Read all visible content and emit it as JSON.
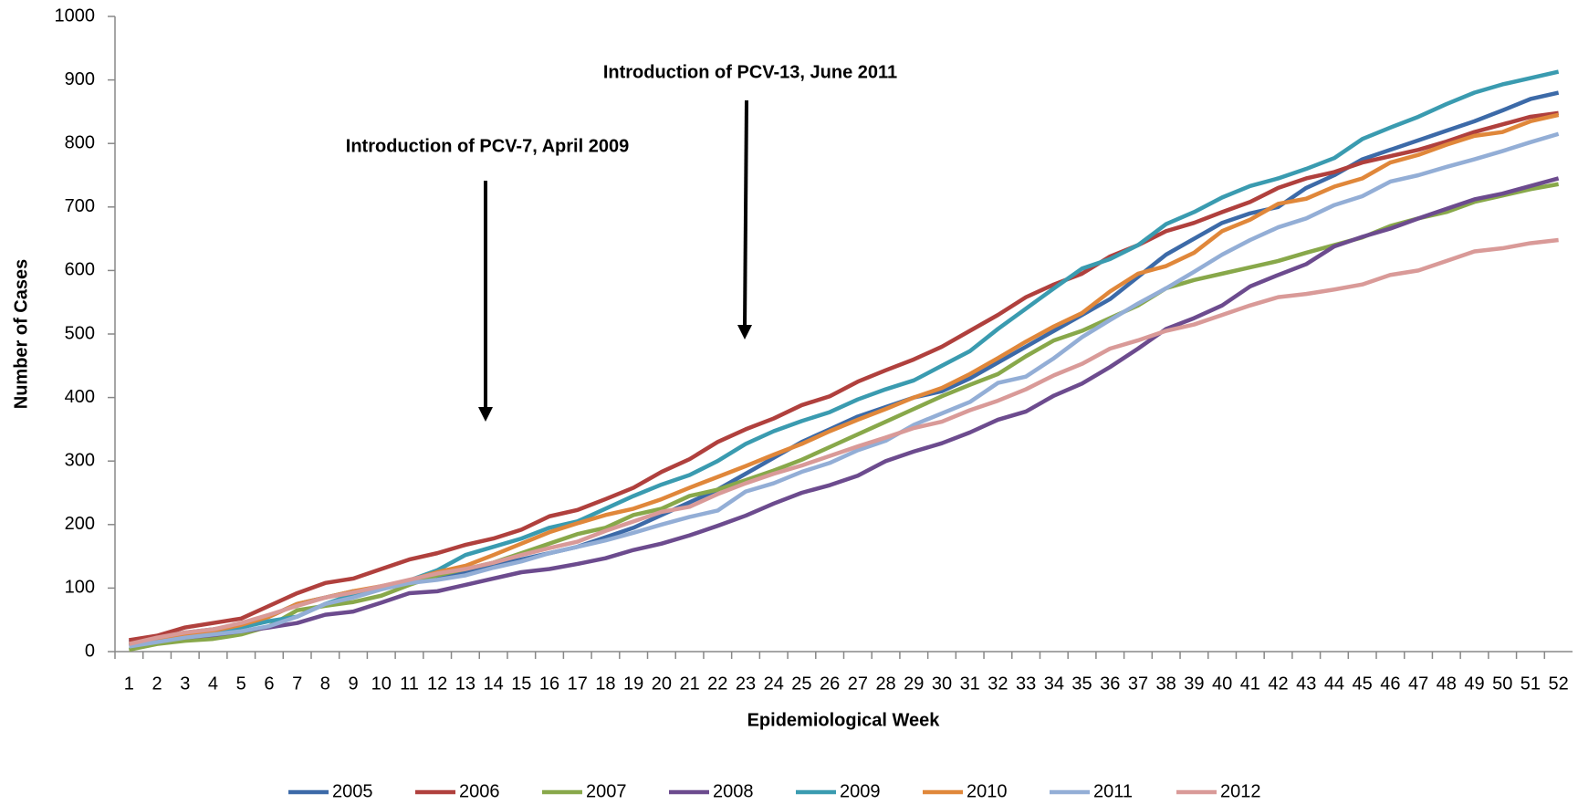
{
  "chart_data": {
    "type": "line",
    "x_label": "Epidemiological Week",
    "y_label": "Number of Cases",
    "annotations": [
      "Introduction of PCV-7, April 2009",
      "Introduction of PCV-13, June 2011"
    ],
    "categories": [
      "1",
      "2",
      "3",
      "4",
      "5",
      "6",
      "7",
      "8",
      "9",
      "10",
      "11",
      "12",
      "13",
      "14",
      "15",
      "16",
      "17",
      "18",
      "19",
      "20",
      "21",
      "22",
      "23",
      "24",
      "25",
      "26",
      "27",
      "28",
      "29",
      "30",
      "31",
      "32",
      "33",
      "34",
      "35",
      "36",
      "37",
      "38",
      "39",
      "40",
      "41",
      "42",
      "43",
      "44",
      "45",
      "46",
      "47",
      "48",
      "49",
      "50",
      "51",
      "52"
    ],
    "ylim": [
      0,
      1000
    ],
    "yticks": [
      0,
      100,
      200,
      300,
      400,
      500,
      600,
      700,
      800,
      900,
      1000
    ],
    "grid": false,
    "legend": "bottom",
    "series": [
      {
        "name": "2005",
        "color": "#3c6aa8",
        "values": [
          15,
          22,
          30,
          35,
          42,
          55,
          75,
          85,
          95,
          100,
          110,
          118,
          125,
          135,
          145,
          155,
          165,
          180,
          195,
          215,
          235,
          255,
          280,
          305,
          330,
          350,
          370,
          385,
          400,
          410,
          430,
          455,
          480,
          505,
          530,
          555,
          590,
          625,
          650,
          675,
          690,
          700,
          730,
          750,
          775,
          790,
          805,
          820,
          835,
          852,
          870,
          880
        ]
      },
      {
        "name": "2006",
        "color": "#b0403d",
        "values": [
          18,
          25,
          38,
          45,
          52,
          72,
          92,
          108,
          115,
          130,
          145,
          155,
          168,
          178,
          192,
          213,
          223,
          240,
          258,
          283,
          303,
          330,
          350,
          367,
          388,
          402,
          425,
          443,
          460,
          480,
          505,
          530,
          558,
          578,
          595,
          622,
          640,
          662,
          675,
          692,
          708,
          730,
          745,
          755,
          770,
          780,
          790,
          803,
          818,
          830,
          842,
          848
        ]
      },
      {
        "name": "2007",
        "color": "#88a84a",
        "values": [
          3,
          12,
          17,
          20,
          27,
          40,
          65,
          72,
          78,
          88,
          105,
          120,
          130,
          140,
          155,
          170,
          185,
          195,
          215,
          225,
          245,
          255,
          270,
          285,
          302,
          322,
          342,
          362,
          382,
          402,
          420,
          437,
          465,
          490,
          505,
          525,
          545,
          572,
          585,
          595,
          605,
          615,
          628,
          640,
          652,
          670,
          682,
          692,
          708,
          718,
          728,
          736
        ]
      },
      {
        "name": "2008",
        "color": "#6c4b8e",
        "values": [
          10,
          17,
          22,
          26,
          32,
          38,
          45,
          58,
          63,
          77,
          92,
          95,
          105,
          115,
          125,
          130,
          138,
          147,
          160,
          170,
          183,
          198,
          214,
          233,
          250,
          262,
          277,
          300,
          315,
          328,
          345,
          365,
          378,
          403,
          422,
          448,
          477,
          508,
          525,
          545,
          575,
          593,
          610,
          638,
          653,
          666,
          682,
          697,
          712,
          721,
          733,
          745
        ]
      },
      {
        "name": "2009",
        "color": "#3a9bb0",
        "values": [
          10,
          18,
          25,
          30,
          38,
          48,
          55,
          75,
          90,
          100,
          112,
          128,
          152,
          165,
          178,
          195,
          205,
          225,
          245,
          263,
          278,
          300,
          327,
          347,
          363,
          377,
          397,
          413,
          427,
          450,
          473,
          508,
          540,
          572,
          603,
          618,
          640,
          673,
          692,
          715,
          733,
          745,
          760,
          777,
          807,
          825,
          842,
          862,
          880,
          893,
          903,
          913
        ]
      },
      {
        "name": "2010",
        "color": "#e0873a",
        "values": [
          12,
          20,
          28,
          33,
          42,
          55,
          75,
          85,
          95,
          103,
          112,
          125,
          135,
          152,
          170,
          188,
          202,
          215,
          225,
          240,
          258,
          275,
          292,
          310,
          327,
          347,
          365,
          382,
          400,
          415,
          437,
          462,
          488,
          512,
          533,
          567,
          595,
          607,
          628,
          662,
          680,
          705,
          713,
          732,
          745,
          770,
          782,
          798,
          812,
          818,
          835,
          845
        ]
      },
      {
        "name": "2011",
        "color": "#93aed6",
        "values": [
          8,
          15,
          22,
          27,
          32,
          40,
          55,
          75,
          85,
          98,
          108,
          113,
          120,
          132,
          142,
          155,
          165,
          175,
          187,
          200,
          212,
          222,
          252,
          265,
          283,
          297,
          317,
          332,
          357,
          375,
          393,
          423,
          433,
          462,
          495,
          522,
          548,
          572,
          598,
          625,
          648,
          668,
          682,
          703,
          717,
          740,
          750,
          763,
          775,
          788,
          802,
          815
        ]
      },
      {
        "name": "2012",
        "color": "#d99a98",
        "values": [
          12,
          22,
          30,
          35,
          45,
          58,
          72,
          85,
          93,
          103,
          113,
          123,
          130,
          140,
          152,
          163,
          173,
          190,
          205,
          220,
          228,
          248,
          265,
          280,
          293,
          308,
          323,
          337,
          352,
          362,
          380,
          395,
          413,
          435,
          453,
          477,
          490,
          505,
          515,
          530,
          545,
          558,
          563,
          570,
          578,
          593,
          600,
          615,
          630,
          635,
          643,
          648
        ]
      }
    ]
  }
}
